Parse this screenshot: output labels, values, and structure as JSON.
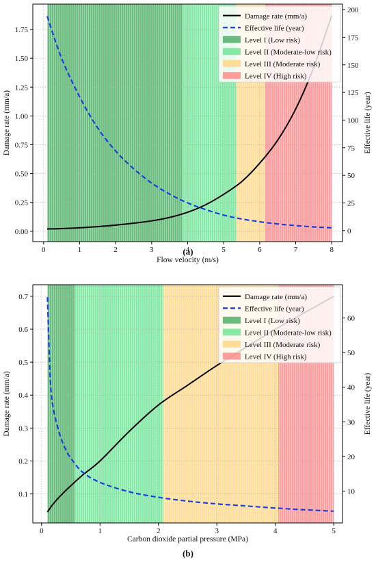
{
  "figure": {
    "panels": [
      {
        "id": "a",
        "caption": "(a)",
        "xlabel": "Flow velocity (m/s)",
        "ylabel_left": "Damage rate (mm/a)",
        "ylabel_right": "Effective life (year)",
        "xlim": [
          -0.3,
          8.3
        ],
        "ylim_left": [
          -0.09,
          1.97
        ],
        "ylim_right": [
          -10,
          205
        ],
        "xticks": [
          0,
          1,
          2,
          3,
          4,
          5,
          6,
          7,
          8
        ],
        "yticks_left": [
          0.0,
          0.25,
          0.5,
          0.75,
          1.0,
          1.25,
          1.5,
          1.75
        ],
        "ytick_labels_left": [
          "0.00",
          "0.25",
          "0.50",
          "0.75",
          "1.00",
          "1.25",
          "1.50",
          "1.75"
        ],
        "yticks_right": [
          0,
          25,
          50,
          75,
          100,
          125,
          150,
          175,
          200
        ],
        "legend_position": "top-right",
        "legend_ncols": 1
      },
      {
        "id": "b",
        "caption": "(b)",
        "xlabel": "Carbon dioxide partial pressure (MPa)",
        "ylabel_left": "Damage rate (mm/a)",
        "ylabel_right": "Effective life (year)",
        "xlim": [
          -0.15,
          5.15
        ],
        "ylim_left": [
          0.012,
          0.735
        ],
        "ylim_right": [
          0.8,
          69.6
        ],
        "xticks": [
          0,
          1,
          2,
          3,
          4,
          5
        ],
        "yticks_left": [
          0.1,
          0.2,
          0.3,
          0.4,
          0.5,
          0.6,
          0.7
        ],
        "ytick_labels_left": [
          "0.1",
          "0.2",
          "0.3",
          "0.4",
          "0.5",
          "0.6",
          "0.7"
        ],
        "yticks_right": [
          10,
          20,
          30,
          40,
          50,
          60
        ],
        "legend_position": "top-right",
        "legend_ncols": 1
      }
    ]
  },
  "chart_data": [
    {
      "type": "line",
      "x": [
        0.1,
        0.5,
        1,
        1.5,
        2,
        2.5,
        3,
        3.5,
        4,
        4.5,
        5,
        5.5,
        6,
        6.5,
        7,
        7.5,
        8
      ],
      "series": [
        {
          "name": "Damage rate (mm/a)",
          "axis": "left",
          "color": "#000000",
          "style": "solid",
          "values": [
            0.02,
            0.023,
            0.03,
            0.04,
            0.053,
            0.07,
            0.09,
            0.12,
            0.165,
            0.23,
            0.32,
            0.43,
            0.59,
            0.79,
            1.06,
            1.42,
            1.87
          ]
        },
        {
          "name": "Effective life (year)",
          "axis": "right",
          "color": "#1a3fe0",
          "style": "dashed",
          "values": [
            194,
            156,
            121,
            93,
            72,
            56,
            43,
            33,
            25,
            19,
            14,
            10.5,
            8,
            6,
            4.5,
            3.3,
            2.5
          ]
        }
      ],
      "bands": [
        {
          "name": "Level I (Low risk)",
          "from": 0.1,
          "to": 3.85,
          "color": "#3aa655"
        },
        {
          "name": "Level II (Moderate-low risk)",
          "from": 3.85,
          "to": 5.35,
          "color": "#5fe38a"
        },
        {
          "name": "Level III (Moderate risk)",
          "from": 5.35,
          "to": 6.15,
          "color": "#ffd27a"
        },
        {
          "name": "Level IV (High risk)",
          "from": 6.15,
          "to": 8.0,
          "color": "#ff7e7e"
        }
      ]
    },
    {
      "type": "line",
      "x": [
        0.1,
        0.15,
        0.2,
        0.3,
        0.4,
        0.5,
        0.7,
        1,
        1.5,
        2,
        2.5,
        3,
        3.5,
        4,
        4.5,
        5
      ],
      "series": [
        {
          "name": "Damage rate (mm/a)",
          "axis": "left",
          "color": "#000000",
          "style": "solid",
          "values": [
            0.045,
            0.058,
            0.07,
            0.09,
            0.108,
            0.125,
            0.157,
            0.2,
            0.29,
            0.37,
            0.43,
            0.49,
            0.545,
            0.6,
            0.65,
            0.7
          ]
        },
        {
          "name": "Effective life (year)",
          "axis": "right",
          "color": "#1a3fe0",
          "style": "dashed",
          "values": [
            66,
            42,
            34,
            27,
            22.5,
            19.5,
            15.5,
            12.5,
            9.8,
            8.2,
            7.1,
            6.3,
            5.7,
            5.1,
            4.6,
            4.2
          ]
        }
      ],
      "bands": [
        {
          "name": "Level I (Low risk)",
          "from": 0.1,
          "to": 0.57,
          "color": "#3aa655"
        },
        {
          "name": "Level II (Moderate-low risk)",
          "from": 0.57,
          "to": 2.08,
          "color": "#5fe38a"
        },
        {
          "name": "Level III (Moderate risk)",
          "from": 2.08,
          "to": 4.05,
          "color": "#ffd27a"
        },
        {
          "name": "Level IV (High risk)",
          "from": 4.05,
          "to": 5.0,
          "color": "#ff7e7e"
        }
      ]
    }
  ]
}
